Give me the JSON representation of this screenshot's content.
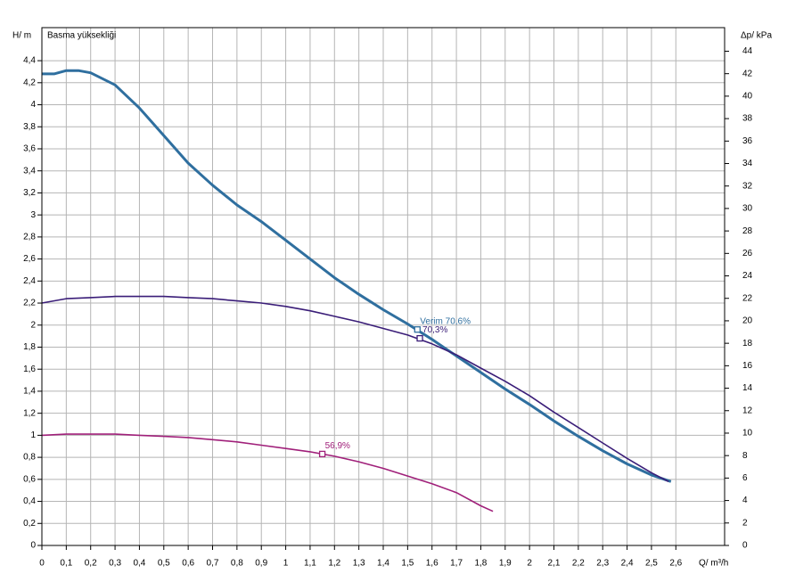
{
  "chart_data": {
    "type": "line",
    "title": "Basma yüksekliği",
    "ylabel": "H/ m",
    "y2label": "Δp/ kPa",
    "xlabel": "Q/ m³/h",
    "xlim": [
      0,
      2.8
    ],
    "ylim": [
      0,
      4.7
    ],
    "y2lim": [
      0,
      46.1
    ],
    "grid": true,
    "xticks": [
      0,
      {
        "value": 0.1,
        "label": "0,1"
      },
      {
        "value": 0.2,
        "label": "0,2"
      },
      {
        "value": 0.3,
        "label": "0,3"
      },
      {
        "value": 0.4,
        "label": "0,4"
      },
      {
        "value": 0.5,
        "label": "0,5"
      },
      {
        "value": 0.6,
        "label": "0,6"
      },
      {
        "value": 0.7,
        "label": "0,7"
      },
      {
        "value": 0.8,
        "label": "0,8"
      },
      {
        "value": 0.9,
        "label": "0,9"
      },
      1,
      {
        "value": 1.1,
        "label": "1,1"
      },
      {
        "value": 1.2,
        "label": "1,2"
      },
      {
        "value": 1.3,
        "label": "1,3"
      },
      {
        "value": 1.4,
        "label": "1,4"
      },
      {
        "value": 1.5,
        "label": "1,5"
      },
      {
        "value": 1.6,
        "label": "1,6"
      },
      {
        "value": 1.7,
        "label": "1,7"
      },
      {
        "value": 1.8,
        "label": "1,8"
      },
      {
        "value": 1.9,
        "label": "1,9"
      },
      2,
      {
        "value": 2.1,
        "label": "2,1"
      },
      {
        "value": 2.2,
        "label": "2,2"
      },
      {
        "value": 2.3,
        "label": "2,3"
      },
      {
        "value": 2.4,
        "label": "2,4"
      },
      {
        "value": 2.5,
        "label": "2,5"
      },
      {
        "value": 2.6,
        "label": "2,6"
      }
    ],
    "yticks": [
      0,
      {
        "value": 0.2,
        "label": "0,2"
      },
      {
        "value": 0.4,
        "label": "0,4"
      },
      {
        "value": 0.6,
        "label": "0,6"
      },
      {
        "value": 0.8,
        "label": "0,8"
      },
      1,
      {
        "value": 1.2,
        "label": "1,2"
      },
      {
        "value": 1.4,
        "label": "1,4"
      },
      {
        "value": 1.6,
        "label": "1,6"
      },
      {
        "value": 1.8,
        "label": "1,8"
      },
      2,
      {
        "value": 2.2,
        "label": "2,2"
      },
      {
        "value": 2.4,
        "label": "2,4"
      },
      {
        "value": 2.6,
        "label": "2,6"
      },
      {
        "value": 2.8,
        "label": "2,8"
      },
      3,
      {
        "value": 3.2,
        "label": "3,2"
      },
      {
        "value": 3.4,
        "label": "3,4"
      },
      {
        "value": 3.6,
        "label": "3,6"
      },
      {
        "value": 3.8,
        "label": "3,8"
      },
      4,
      {
        "value": 4.2,
        "label": "4,2"
      },
      {
        "value": 4.4,
        "label": "4,4"
      }
    ],
    "y2ticks": [
      0,
      2,
      4,
      6,
      8,
      10,
      12,
      14,
      16,
      18,
      20,
      22,
      24,
      26,
      28,
      30,
      32,
      34,
      36,
      38,
      40,
      42,
      44
    ],
    "series": [
      {
        "color": "#2f6f9f",
        "x": [
          0,
          0.05,
          0.1,
          0.15,
          0.2,
          0.3,
          0.4,
          0.5,
          0.6,
          0.7,
          0.8,
          0.9,
          1.0,
          1.1,
          1.2,
          1.3,
          1.4,
          1.5,
          1.6,
          1.7,
          1.8,
          1.9,
          2.0,
          2.1,
          2.2,
          2.3,
          2.4,
          2.5,
          2.58
        ],
        "values": [
          4.28,
          4.28,
          4.31,
          4.31,
          4.29,
          4.18,
          3.97,
          3.72,
          3.47,
          3.27,
          3.09,
          2.94,
          2.77,
          2.6,
          2.43,
          2.28,
          2.14,
          2.01,
          1.87,
          1.72,
          1.57,
          1.42,
          1.28,
          1.13,
          0.99,
          0.86,
          0.74,
          0.64,
          0.58
        ]
      },
      {
        "color": "#3a1d78",
        "x": [
          0,
          0.1,
          0.2,
          0.3,
          0.4,
          0.5,
          0.6,
          0.7,
          0.8,
          0.9,
          1.0,
          1.1,
          1.2,
          1.3,
          1.4,
          1.5,
          1.6,
          1.7,
          1.8,
          1.9,
          2.0,
          2.1,
          2.2,
          2.3,
          2.4,
          2.5,
          2.57
        ],
        "values": [
          2.2,
          2.24,
          2.25,
          2.26,
          2.26,
          2.26,
          2.25,
          2.24,
          2.22,
          2.2,
          2.17,
          2.13,
          2.08,
          2.03,
          1.97,
          1.91,
          1.83,
          1.73,
          1.61,
          1.49,
          1.36,
          1.21,
          1.07,
          0.93,
          0.79,
          0.66,
          0.58
        ]
      },
      {
        "color": "#a0207a",
        "x": [
          0,
          0.1,
          0.2,
          0.3,
          0.4,
          0.5,
          0.6,
          0.7,
          0.8,
          0.9,
          1.0,
          1.1,
          1.2,
          1.3,
          1.4,
          1.5,
          1.6,
          1.7,
          1.8,
          1.85
        ],
        "values": [
          1.0,
          1.01,
          1.01,
          1.01,
          1.0,
          0.99,
          0.98,
          0.96,
          0.94,
          0.91,
          0.88,
          0.85,
          0.81,
          0.76,
          0.7,
          0.63,
          0.56,
          0.48,
          0.36,
          0.31
        ]
      }
    ],
    "annotations": [
      {
        "text": "Verim 70,6%",
        "x": 1.54,
        "y": 1.96,
        "color": "#2f6f9f"
      },
      {
        "text": "70,3%",
        "x": 1.55,
        "y": 1.88,
        "color": "#3a1d78"
      },
      {
        "text": "56,9%",
        "x": 1.15,
        "y": 0.83,
        "color": "#a0207a"
      }
    ]
  }
}
